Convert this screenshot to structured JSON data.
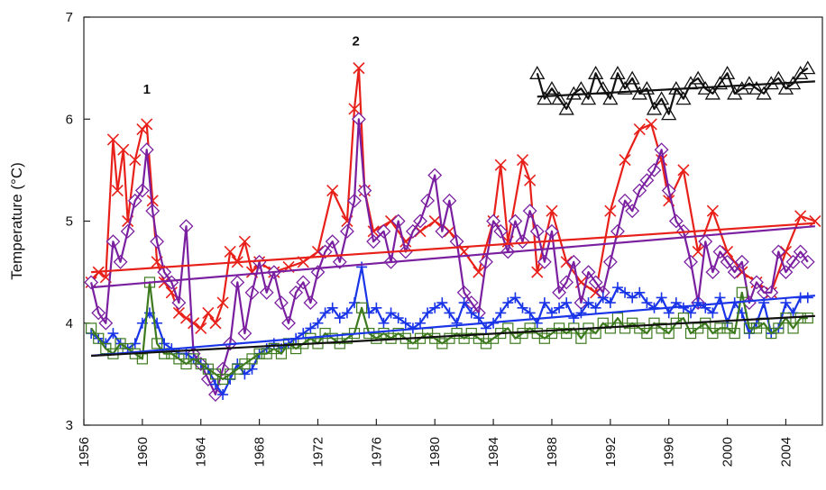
{
  "chart_data": {
    "type": "line",
    "title": "",
    "xlabel": "",
    "ylabel": "Temperature (°C)",
    "xlim": [
      1956,
      2006
    ],
    "ylim": [
      3,
      7
    ],
    "x_ticks": [
      1956,
      1960,
      1964,
      1968,
      1972,
      1976,
      1980,
      1984,
      1988,
      1992,
      1996,
      2000,
      2004
    ],
    "y_ticks": [
      3,
      4,
      5,
      6,
      7
    ],
    "grid": false,
    "legend": "none",
    "annotations": [
      {
        "text": "1",
        "x": 1960.3,
        "y": 6.25
      },
      {
        "text": "2",
        "x": 1974.6,
        "y": 6.72
      }
    ],
    "series": [
      {
        "color": "#e8201a",
        "marker": "x",
        "x": [
          1956.5,
          1957,
          1957.5,
          1958,
          1958.3,
          1958.7,
          1959,
          1959.5,
          1960,
          1960.3,
          1960.7,
          1961,
          1961.5,
          1962,
          1962.5,
          1963,
          1963.5,
          1964,
          1964.5,
          1965,
          1965.5,
          1966,
          1966.5,
          1967,
          1967.5,
          1968,
          1969,
          1970,
          1971,
          1972,
          1973,
          1974,
          1974.5,
          1974.8,
          1975.2,
          1975.8,
          1977,
          1978,
          1979,
          1980,
          1981,
          1982,
          1983,
          1984,
          1984.5,
          1985,
          1986,
          1986.5,
          1987,
          1988,
          1989,
          1990,
          1991,
          1992,
          1993,
          1994,
          1994.8,
          1995.5,
          1996,
          1997,
          1998,
          1999,
          2000,
          2001,
          2002,
          2003,
          2004,
          2005,
          2006
        ],
        "y": [
          4.4,
          4.5,
          4.45,
          5.8,
          5.3,
          5.7,
          5.0,
          5.6,
          5.9,
          5.95,
          5.2,
          4.6,
          4.4,
          4.3,
          4.1,
          4.05,
          4.0,
          3.95,
          4.1,
          4.0,
          4.2,
          4.7,
          4.6,
          4.8,
          4.5,
          4.6,
          4.5,
          4.55,
          4.6,
          4.7,
          5.3,
          5.0,
          6.1,
          6.5,
          5.3,
          4.9,
          5.0,
          4.8,
          4.9,
          5.0,
          4.9,
          4.7,
          4.5,
          5.0,
          5.55,
          4.8,
          5.6,
          5.4,
          4.5,
          5.1,
          4.6,
          4.4,
          4.3,
          5.1,
          5.6,
          5.9,
          5.95,
          5.6,
          5.2,
          5.5,
          4.7,
          5.1,
          4.7,
          4.5,
          4.4,
          4.3,
          4.7,
          5.05,
          5.0
        ]
      },
      {
        "color": "#7a1fa0",
        "marker": "diamond",
        "x": [
          1956.5,
          1957,
          1957.5,
          1958,
          1958.5,
          1959,
          1959.5,
          1960,
          1960.3,
          1960.7,
          1961,
          1961.5,
          1962,
          1962.5,
          1963,
          1963.5,
          1964,
          1964.5,
          1965,
          1965.5,
          1966,
          1966.5,
          1967,
          1967.5,
          1968,
          1968.5,
          1969,
          1969.5,
          1970,
          1970.5,
          1971,
          1971.5,
          1972,
          1972.5,
          1973,
          1973.5,
          1974,
          1974.5,
          1974.8,
          1975.2,
          1975.8,
          1976.5,
          1977,
          1977.5,
          1978,
          1978.5,
          1979,
          1979.5,
          1980,
          1980.5,
          1981,
          1981.5,
          1982,
          1982.5,
          1983,
          1983.5,
          1984,
          1984.5,
          1985,
          1985.5,
          1986,
          1986.5,
          1987,
          1987.5,
          1988,
          1988.5,
          1989,
          1989.5,
          1990,
          1990.5,
          1991,
          1991.5,
          1992,
          1992.5,
          1993,
          1993.5,
          1994,
          1994.5,
          1995,
          1995.5,
          1996,
          1996.5,
          1997,
          1997.5,
          1998,
          1998.5,
          1999,
          1999.5,
          2000,
          2000.5,
          2001,
          2001.5,
          2002,
          2002.5,
          2003,
          2003.5,
          2004,
          2004.5,
          2005,
          2005.5
        ],
        "y": [
          4.4,
          4.1,
          4.0,
          4.8,
          4.6,
          4.9,
          5.2,
          5.3,
          5.7,
          5.1,
          4.8,
          4.5,
          4.4,
          4.2,
          4.95,
          3.7,
          3.6,
          3.45,
          3.3,
          3.55,
          3.8,
          4.4,
          3.9,
          4.3,
          4.6,
          4.3,
          4.5,
          4.2,
          4.0,
          4.3,
          4.4,
          4.2,
          4.5,
          4.7,
          4.8,
          4.6,
          4.9,
          5.2,
          6.0,
          5.3,
          4.8,
          4.9,
          4.6,
          5.0,
          4.7,
          4.9,
          5.0,
          5.2,
          5.45,
          4.9,
          5.2,
          4.8,
          4.3,
          4.2,
          4.1,
          4.6,
          5.0,
          4.9,
          4.7,
          5.0,
          4.8,
          5.1,
          4.9,
          4.6,
          4.9,
          4.3,
          4.4,
          4.6,
          4.2,
          4.5,
          4.4,
          4.3,
          4.6,
          4.9,
          5.2,
          5.1,
          5.3,
          5.4,
          5.5,
          5.7,
          5.3,
          5.0,
          4.9,
          4.6,
          4.2,
          4.8,
          4.5,
          4.7,
          4.6,
          4.5,
          4.6,
          4.2,
          4.4,
          4.3,
          4.3,
          4.7,
          4.5,
          4.6,
          4.7,
          4.6
        ]
      },
      {
        "color": "#1a35e8",
        "marker": "plus",
        "x": [
          1956.5,
          1957,
          1957.5,
          1958,
          1958.5,
          1959,
          1959.5,
          1960,
          1960.5,
          1961,
          1961.5,
          1962,
          1962.5,
          1963,
          1963.5,
          1964,
          1964.5,
          1965,
          1965.5,
          1966,
          1966.5,
          1967,
          1967.5,
          1968,
          1968.5,
          1969,
          1969.5,
          1970,
          1970.5,
          1971,
          1971.5,
          1972,
          1972.5,
          1973,
          1973.5,
          1974,
          1974.5,
          1975,
          1975.5,
          1976,
          1976.5,
          1977,
          1977.5,
          1978,
          1978.5,
          1979,
          1979.5,
          1980,
          1980.5,
          1981,
          1981.5,
          1982,
          1982.5,
          1983,
          1983.5,
          1984,
          1984.5,
          1985,
          1985.5,
          1986,
          1986.5,
          1987,
          1987.5,
          1988,
          1988.5,
          1989,
          1989.5,
          1990,
          1990.5,
          1991,
          1991.5,
          1992,
          1992.5,
          1993,
          1993.5,
          1994,
          1994.5,
          1995,
          1995.5,
          1996,
          1996.5,
          1997,
          1997.5,
          1998,
          1998.5,
          1999,
          1999.5,
          2000,
          2000.5,
          2001,
          2001.5,
          2002,
          2002.5,
          2003,
          2003.5,
          2004,
          2004.5,
          2005,
          2005.5
        ],
        "y": [
          3.9,
          3.85,
          3.8,
          3.9,
          3.8,
          3.75,
          3.8,
          4.0,
          4.1,
          4.0,
          3.8,
          3.75,
          3.7,
          3.7,
          3.65,
          3.6,
          3.55,
          3.4,
          3.3,
          3.45,
          3.6,
          3.5,
          3.55,
          3.7,
          3.75,
          3.8,
          3.75,
          3.8,
          3.85,
          3.9,
          3.95,
          4.0,
          4.1,
          4.15,
          4.05,
          4.1,
          4.2,
          4.55,
          4.1,
          4.15,
          4.0,
          4.1,
          4.05,
          4.0,
          3.95,
          4.0,
          4.1,
          4.15,
          4.2,
          4.1,
          4.0,
          4.2,
          4.1,
          4.05,
          3.95,
          4.0,
          4.1,
          4.2,
          4.25,
          4.15,
          4.1,
          4.0,
          4.2,
          4.1,
          4.15,
          4.2,
          4.05,
          4.1,
          4.2,
          4.15,
          4.25,
          4.2,
          4.35,
          4.3,
          4.25,
          4.3,
          4.2,
          4.15,
          4.25,
          4.1,
          4.2,
          4.15,
          4.1,
          4.2,
          4.15,
          4.1,
          4.25,
          4.0,
          4.2,
          4.1,
          3.9,
          4.0,
          4.2,
          3.9,
          3.95,
          4.2,
          4.1,
          4.25,
          4.25
        ]
      },
      {
        "color": "#3d7a1e",
        "marker": "square",
        "x": [
          1956.5,
          1957,
          1957.5,
          1958,
          1958.5,
          1959,
          1959.5,
          1960,
          1960.5,
          1961,
          1961.5,
          1962,
          1962.5,
          1963,
          1963.5,
          1964,
          1964.5,
          1965,
          1965.5,
          1966,
          1966.5,
          1967,
          1967.5,
          1968,
          1968.5,
          1969,
          1969.5,
          1970,
          1970.5,
          1971,
          1971.5,
          1972,
          1972.5,
          1973,
          1973.5,
          1974,
          1974.5,
          1975,
          1975.5,
          1976,
          1976.5,
          1977,
          1977.5,
          1978,
          1978.5,
          1979,
          1979.5,
          1980,
          1980.5,
          1981,
          1981.5,
          1982,
          1982.5,
          1983,
          1983.5,
          1984,
          1984.5,
          1985,
          1985.5,
          1986,
          1986.5,
          1987,
          1987.5,
          1988,
          1988.5,
          1989,
          1989.5,
          1990,
          1990.5,
          1991,
          1991.5,
          1992,
          1992.5,
          1993,
          1993.5,
          1994,
          1994.5,
          1995,
          1995.5,
          1996,
          1996.5,
          1997,
          1997.5,
          1998,
          1998.5,
          1999,
          1999.5,
          2000,
          2000.5,
          2001,
          2001.5,
          2002,
          2002.5,
          2003,
          2003.5,
          2004,
          2004.5,
          2005,
          2005.5
        ],
        "y": [
          3.95,
          3.85,
          3.75,
          3.7,
          3.8,
          3.75,
          3.7,
          3.65,
          4.4,
          3.8,
          3.7,
          3.7,
          3.65,
          3.6,
          3.65,
          3.6,
          3.55,
          3.5,
          3.45,
          3.5,
          3.55,
          3.6,
          3.65,
          3.7,
          3.7,
          3.75,
          3.7,
          3.8,
          3.75,
          3.8,
          3.85,
          3.8,
          3.9,
          3.85,
          3.8,
          3.85,
          3.9,
          4.15,
          3.9,
          3.85,
          3.9,
          3.85,
          3.9,
          3.85,
          3.8,
          3.85,
          3.9,
          3.85,
          3.8,
          3.85,
          3.9,
          3.85,
          3.9,
          3.85,
          3.8,
          3.85,
          3.9,
          3.95,
          3.85,
          3.9,
          3.95,
          3.9,
          3.85,
          3.9,
          3.95,
          3.9,
          3.95,
          3.85,
          3.95,
          3.9,
          4.0,
          3.95,
          4.05,
          3.95,
          4.0,
          3.95,
          3.9,
          4.0,
          3.95,
          3.9,
          4.0,
          4.05,
          3.9,
          3.95,
          4.0,
          3.9,
          3.95,
          3.95,
          3.9,
          4.3,
          3.95,
          3.95,
          4.0,
          3.9,
          3.95,
          4.05,
          3.95,
          4.05,
          4.05
        ]
      },
      {
        "color": "#111111",
        "marker": "triangle",
        "x": [
          1987,
          1987.5,
          1988,
          1988.5,
          1989,
          1989.5,
          1990,
          1990.5,
          1991,
          1991.5,
          1992,
          1992.5,
          1993,
          1993.5,
          1994,
          1994.5,
          1995,
          1995.5,
          1996,
          1996.5,
          1997,
          1997.5,
          1998,
          1998.5,
          1999,
          1999.5,
          2000,
          2000.5,
          2001,
          2001.5,
          2002,
          2002.5,
          2003,
          2003.5,
          2004,
          2004.5,
          2005,
          2005.5
        ],
        "y": [
          6.45,
          6.2,
          6.3,
          6.2,
          6.1,
          6.25,
          6.3,
          6.2,
          6.45,
          6.3,
          6.2,
          6.45,
          6.3,
          6.4,
          6.25,
          6.3,
          6.1,
          6.2,
          6.05,
          6.3,
          6.2,
          6.35,
          6.4,
          6.3,
          6.25,
          6.35,
          6.45,
          6.25,
          6.3,
          6.35,
          6.3,
          6.25,
          6.35,
          6.4,
          6.3,
          6.35,
          6.45,
          6.5
        ]
      }
    ],
    "trend_lines": [
      {
        "color": "#e8201a",
        "x": [
          1956.5,
          2006
        ],
        "y": [
          4.5,
          4.98
        ]
      },
      {
        "color": "#7a1fa0",
        "x": [
          1956.5,
          2006
        ],
        "y": [
          4.35,
          4.95
        ]
      },
      {
        "color": "#1a35e8",
        "x": [
          1956.5,
          2006
        ],
        "y": [
          3.68,
          4.27
        ]
      },
      {
        "color": "#111111",
        "x": [
          1956.5,
          2006
        ],
        "y": [
          3.68,
          4.07
        ]
      },
      {
        "color": "#111111",
        "x": [
          1987,
          2006
        ],
        "y": [
          6.22,
          6.37
        ]
      }
    ]
  }
}
